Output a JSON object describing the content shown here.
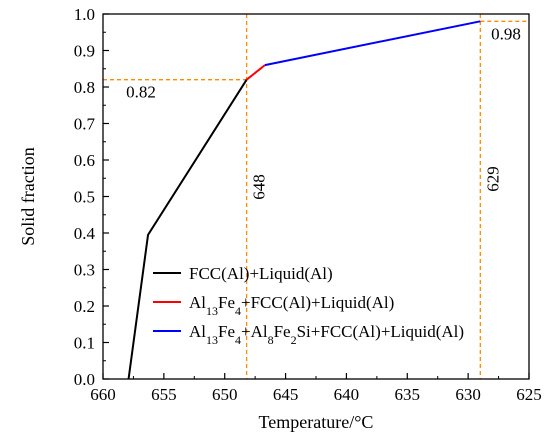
{
  "chart_data": {
    "type": "line",
    "xlabel": "Temperature/°C",
    "ylabel": "Solid fraction",
    "xlim": [
      660,
      625
    ],
    "ylim": [
      0.0,
      1.0
    ],
    "x_ticks": [
      "660",
      "655",
      "650",
      "645",
      "640",
      "635",
      "630",
      "625"
    ],
    "y_ticks": [
      "0.0",
      "0.1",
      "0.2",
      "0.3",
      "0.4",
      "0.5",
      "0.6",
      "0.7",
      "0.8",
      "0.9",
      "1.0"
    ],
    "grid": false,
    "legend_placement": "bottom-right",
    "series": [
      {
        "legend_html": "FCC(Al)+Liquid(Al)",
        "color": "#000000",
        "x": [
          657.9,
          656.3,
          648.2
        ],
        "y": [
          0.0,
          0.395,
          0.82
        ]
      },
      {
        "legend_html": "Al<tspan baseline-shift=\"sub\" font-size=\"12\">13</tspan>Fe<tspan baseline-shift=\"sub\" font-size=\"12\">4</tspan>+FCC(Al)+Liquid(Al)",
        "color": "#ff0000",
        "x": [
          648.2,
          646.7
        ],
        "y": [
          0.82,
          0.86
        ]
      },
      {
        "legend_html": "Al<tspan baseline-shift=\"sub\" font-size=\"12\">13</tspan>Fe<tspan baseline-shift=\"sub\" font-size=\"12\">4</tspan>+Al<tspan baseline-shift=\"sub\" font-size=\"12\">8</tspan>Fe<tspan baseline-shift=\"sub\" font-size=\"12\">2</tspan>Si+FCC(Al)+Liquid(Al)",
        "color": "#0000ff",
        "x": [
          646.7,
          629.0
        ],
        "y": [
          0.86,
          0.98
        ]
      }
    ],
    "reference_lines": {
      "color": "#ff8c00",
      "vertical": [
        {
          "x": 648.2,
          "label": "648"
        },
        {
          "x": 629.0,
          "label": "629"
        }
      ],
      "horizontal": [
        {
          "y": 0.82,
          "label": "0.82"
        },
        {
          "y": 0.98,
          "label": "0.98"
        }
      ]
    }
  }
}
